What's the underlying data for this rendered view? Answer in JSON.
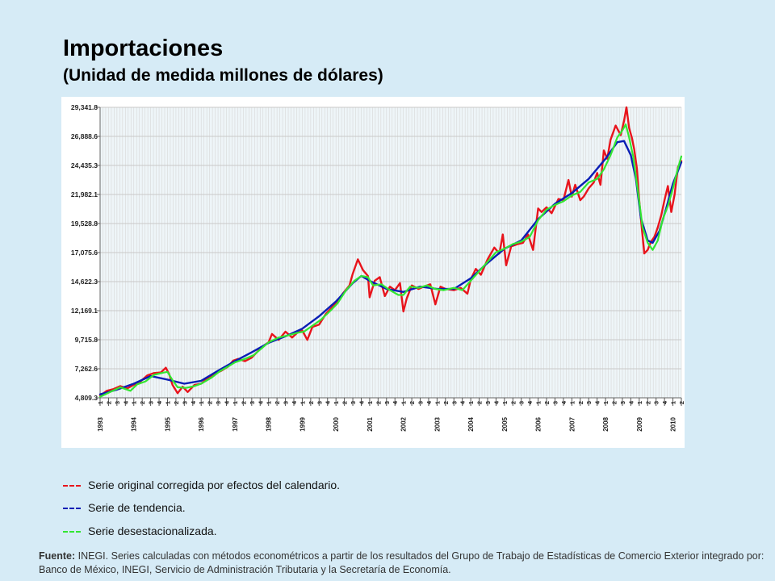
{
  "header": {
    "title": "Importaciones",
    "subtitle": "(Unidad de medida millones de dólares)"
  },
  "colors": {
    "original": "#e8141c",
    "trend": "#0a1eb4",
    "seasonal": "#32e632",
    "plot_bg": "#eef5f8",
    "grid": "#d7d7d7"
  },
  "legend": [
    {
      "label": "Serie original corregida por efectos del calendario.",
      "color": "#e8141c"
    },
    {
      "label": "Serie de tendencia.",
      "color": "#0a1eb4"
    },
    {
      "label": "Serie desestacionalizada.",
      "color": "#32e632"
    }
  ],
  "footnote": {
    "label": "Fuente:",
    "text": "INEGI. Series calculadas con métodos econométricos a partir de los resultados del Grupo de Trabajo de Estadísticas de Comercio Exterior integrado por: Banco de México, INEGI, Servicio de Administración Tributaria y la Secretaría de Economía."
  },
  "chart_data": {
    "type": "line",
    "title": "Importaciones",
    "subtitle": "(Unidad de medida millones de dólares)",
    "y_ticks": [
      "29,341.8",
      "26,888.6",
      "24,435.3",
      "21,982.1",
      "19,528.8",
      "17,075.6",
      "14,622.3",
      "12,169.1",
      "9,715.8",
      "7,262.6",
      "4,809.3"
    ],
    "ylim": [
      4809.3,
      29341.8
    ],
    "x_years": [
      "1993",
      "1994",
      "1995",
      "1996",
      "1997",
      "1998",
      "1999",
      "2000",
      "2001",
      "2002",
      "2003",
      "2004",
      "2005",
      "2006",
      "2007",
      "2008",
      "2009",
      "2010"
    ],
    "x_range": [
      1993.0,
      2010.25
    ],
    "grid": true,
    "series": [
      {
        "name": "Serie original corregida por efectos del calendario.",
        "key": "original",
        "points": [
          [
            1993.0,
            5000
          ],
          [
            1993.2,
            5400
          ],
          [
            1993.4,
            5550
          ],
          [
            1993.6,
            5800
          ],
          [
            1993.8,
            5600
          ],
          [
            1994.0,
            5900
          ],
          [
            1994.2,
            6200
          ],
          [
            1994.4,
            6700
          ],
          [
            1994.6,
            6900
          ],
          [
            1994.8,
            6950
          ],
          [
            1994.95,
            7350
          ],
          [
            1995.05,
            6800
          ],
          [
            1995.15,
            5900
          ],
          [
            1995.3,
            5200
          ],
          [
            1995.45,
            5750
          ],
          [
            1995.6,
            5300
          ],
          [
            1995.8,
            5900
          ],
          [
            1996.0,
            6000
          ],
          [
            1996.2,
            6500
          ],
          [
            1996.4,
            6850
          ],
          [
            1996.6,
            7100
          ],
          [
            1996.8,
            7450
          ],
          [
            1996.95,
            7950
          ],
          [
            1997.1,
            8100
          ],
          [
            1997.3,
            7900
          ],
          [
            1997.5,
            8200
          ],
          [
            1997.7,
            8800
          ],
          [
            1997.9,
            9300
          ],
          [
            1998.0,
            9500
          ],
          [
            1998.1,
            10200
          ],
          [
            1998.3,
            9700
          ],
          [
            1998.5,
            10400
          ],
          [
            1998.7,
            9900
          ],
          [
            1998.85,
            10300
          ],
          [
            1999.0,
            10500
          ],
          [
            1999.15,
            9700
          ],
          [
            1999.3,
            10800
          ],
          [
            1999.5,
            11000
          ],
          [
            1999.7,
            11900
          ],
          [
            1999.9,
            12500
          ],
          [
            2000.05,
            12900
          ],
          [
            2000.2,
            13600
          ],
          [
            2000.4,
            14300
          ],
          [
            2000.5,
            15300
          ],
          [
            2000.65,
            16500
          ],
          [
            2000.8,
            15600
          ],
          [
            2000.95,
            15100
          ],
          [
            2001.0,
            13300
          ],
          [
            2001.15,
            14700
          ],
          [
            2001.3,
            15000
          ],
          [
            2001.45,
            13400
          ],
          [
            2001.6,
            14200
          ],
          [
            2001.75,
            13900
          ],
          [
            2001.9,
            14500
          ],
          [
            2002.0,
            12100
          ],
          [
            2002.1,
            13200
          ],
          [
            2002.25,
            14300
          ],
          [
            2002.45,
            14000
          ],
          [
            2002.6,
            14200
          ],
          [
            2002.8,
            14400
          ],
          [
            2002.95,
            12700
          ],
          [
            2003.1,
            14200
          ],
          [
            2003.25,
            14000
          ],
          [
            2003.5,
            13900
          ],
          [
            2003.7,
            14100
          ],
          [
            2003.9,
            13600
          ],
          [
            2004.0,
            14800
          ],
          [
            2004.15,
            15700
          ],
          [
            2004.3,
            15200
          ],
          [
            2004.5,
            16500
          ],
          [
            2004.7,
            17500
          ],
          [
            2004.85,
            17000
          ],
          [
            2004.95,
            18600
          ],
          [
            2005.05,
            16000
          ],
          [
            2005.2,
            17600
          ],
          [
            2005.4,
            17800
          ],
          [
            2005.55,
            17900
          ],
          [
            2005.7,
            18600
          ],
          [
            2005.85,
            17300
          ],
          [
            2006.0,
            20800
          ],
          [
            2006.1,
            20500
          ],
          [
            2006.25,
            20900
          ],
          [
            2006.4,
            20400
          ],
          [
            2006.6,
            21600
          ],
          [
            2006.75,
            21500
          ],
          [
            2006.9,
            23200
          ],
          [
            2007.0,
            21800
          ],
          [
            2007.1,
            22800
          ],
          [
            2007.25,
            21500
          ],
          [
            2007.35,
            21800
          ],
          [
            2007.5,
            22500
          ],
          [
            2007.65,
            23000
          ],
          [
            2007.75,
            23800
          ],
          [
            2007.85,
            22800
          ],
          [
            2007.95,
            25700
          ],
          [
            2008.05,
            25000
          ],
          [
            2008.15,
            26600
          ],
          [
            2008.3,
            27800
          ],
          [
            2008.45,
            27000
          ],
          [
            2008.55,
            28200
          ],
          [
            2008.62,
            29341.8
          ],
          [
            2008.7,
            27600
          ],
          [
            2008.78,
            26800
          ],
          [
            2008.85,
            25800
          ],
          [
            2008.93,
            24200
          ],
          [
            2009.0,
            21500
          ],
          [
            2009.08,
            19000
          ],
          [
            2009.15,
            17000
          ],
          [
            2009.25,
            17300
          ],
          [
            2009.35,
            18000
          ],
          [
            2009.45,
            18400
          ],
          [
            2009.55,
            19200
          ],
          [
            2009.65,
            20200
          ],
          [
            2009.75,
            21500
          ],
          [
            2009.85,
            22700
          ],
          [
            2009.95,
            20500
          ],
          [
            2010.05,
            22000
          ],
          [
            2010.15,
            24300
          ],
          [
            2010.25,
            24800
          ]
        ]
      },
      {
        "name": "Serie de tendencia.",
        "key": "trend",
        "points": [
          [
            1993.0,
            5100
          ],
          [
            1993.5,
            5500
          ],
          [
            1994.0,
            6000
          ],
          [
            1994.5,
            6650
          ],
          [
            1995.0,
            6350
          ],
          [
            1995.5,
            6000
          ],
          [
            1996.0,
            6250
          ],
          [
            1996.5,
            7100
          ],
          [
            1997.0,
            7900
          ],
          [
            1997.5,
            8650
          ],
          [
            1998.0,
            9450
          ],
          [
            1998.5,
            10000
          ],
          [
            1999.0,
            10650
          ],
          [
            1999.5,
            11700
          ],
          [
            2000.0,
            12950
          ],
          [
            2000.5,
            14500
          ],
          [
            2000.75,
            15100
          ],
          [
            2001.0,
            14700
          ],
          [
            2001.5,
            14000
          ],
          [
            2002.0,
            13750
          ],
          [
            2002.5,
            14200
          ],
          [
            2003.0,
            14000
          ],
          [
            2003.5,
            14000
          ],
          [
            2004.0,
            14900
          ],
          [
            2004.5,
            16200
          ],
          [
            2005.0,
            17400
          ],
          [
            2005.5,
            18100
          ],
          [
            2006.0,
            19900
          ],
          [
            2006.5,
            21200
          ],
          [
            2007.0,
            22100
          ],
          [
            2007.5,
            23300
          ],
          [
            2008.0,
            25000
          ],
          [
            2008.35,
            26400
          ],
          [
            2008.55,
            26500
          ],
          [
            2008.75,
            25300
          ],
          [
            2008.9,
            23300
          ],
          [
            2009.05,
            20000
          ],
          [
            2009.25,
            18100
          ],
          [
            2009.4,
            17900
          ],
          [
            2009.6,
            18900
          ],
          [
            2009.8,
            20800
          ],
          [
            2010.0,
            22900
          ],
          [
            2010.25,
            24700
          ]
        ]
      },
      {
        "name": "Serie desestacionalizada.",
        "key": "seasonal",
        "points": [
          [
            1993.0,
            4900
          ],
          [
            1993.3,
            5300
          ],
          [
            1993.6,
            5700
          ],
          [
            1993.9,
            5400
          ],
          [
            1994.1,
            5950
          ],
          [
            1994.35,
            6200
          ],
          [
            1994.6,
            6750
          ],
          [
            1994.9,
            6950
          ],
          [
            1995.0,
            7000
          ],
          [
            1995.15,
            6300
          ],
          [
            1995.3,
            5700
          ],
          [
            1995.55,
            5650
          ],
          [
            1995.8,
            5800
          ],
          [
            1996.0,
            6000
          ],
          [
            1996.3,
            6500
          ],
          [
            1996.55,
            7050
          ],
          [
            1996.8,
            7450
          ],
          [
            1997.0,
            7800
          ],
          [
            1997.3,
            8100
          ],
          [
            1997.55,
            8400
          ],
          [
            1997.8,
            9000
          ],
          [
            1998.0,
            9500
          ],
          [
            1998.3,
            9900
          ],
          [
            1998.6,
            10100
          ],
          [
            1998.85,
            10300
          ],
          [
            1999.05,
            10400
          ],
          [
            1999.3,
            10900
          ],
          [
            1999.55,
            11400
          ],
          [
            1999.85,
            12200
          ],
          [
            2000.05,
            12800
          ],
          [
            2000.3,
            13900
          ],
          [
            2000.55,
            14700
          ],
          [
            2000.75,
            15100
          ],
          [
            2000.95,
            15000
          ],
          [
            2001.1,
            14300
          ],
          [
            2001.35,
            14400
          ],
          [
            2001.6,
            13900
          ],
          [
            2001.85,
            13500
          ],
          [
            2002.0,
            13500
          ],
          [
            2002.2,
            14200
          ],
          [
            2002.45,
            14100
          ],
          [
            2002.7,
            14300
          ],
          [
            2002.95,
            14000
          ],
          [
            2003.2,
            13900
          ],
          [
            2003.5,
            14100
          ],
          [
            2003.75,
            13900
          ],
          [
            2004.0,
            14700
          ],
          [
            2004.25,
            15500
          ],
          [
            2004.5,
            16300
          ],
          [
            2004.75,
            17100
          ],
          [
            2005.0,
            17400
          ],
          [
            2005.25,
            17800
          ],
          [
            2005.5,
            18000
          ],
          [
            2005.75,
            18400
          ],
          [
            2006.0,
            19800
          ],
          [
            2006.25,
            20700
          ],
          [
            2006.5,
            21100
          ],
          [
            2006.75,
            21400
          ],
          [
            2007.0,
            21900
          ],
          [
            2007.25,
            22200
          ],
          [
            2007.5,
            23000
          ],
          [
            2007.75,
            23300
          ],
          [
            2007.95,
            24100
          ],
          [
            2008.15,
            25300
          ],
          [
            2008.35,
            26800
          ],
          [
            2008.5,
            27400
          ],
          [
            2008.6,
            27900
          ],
          [
            2008.7,
            26800
          ],
          [
            2008.82,
            25200
          ],
          [
            2008.95,
            22500
          ],
          [
            2009.1,
            19200
          ],
          [
            2009.25,
            17900
          ],
          [
            2009.4,
            17300
          ],
          [
            2009.55,
            18100
          ],
          [
            2009.7,
            19900
          ],
          [
            2009.85,
            21000
          ],
          [
            2010.0,
            22500
          ],
          [
            2010.15,
            24200
          ],
          [
            2010.25,
            25200
          ]
        ]
      }
    ]
  }
}
